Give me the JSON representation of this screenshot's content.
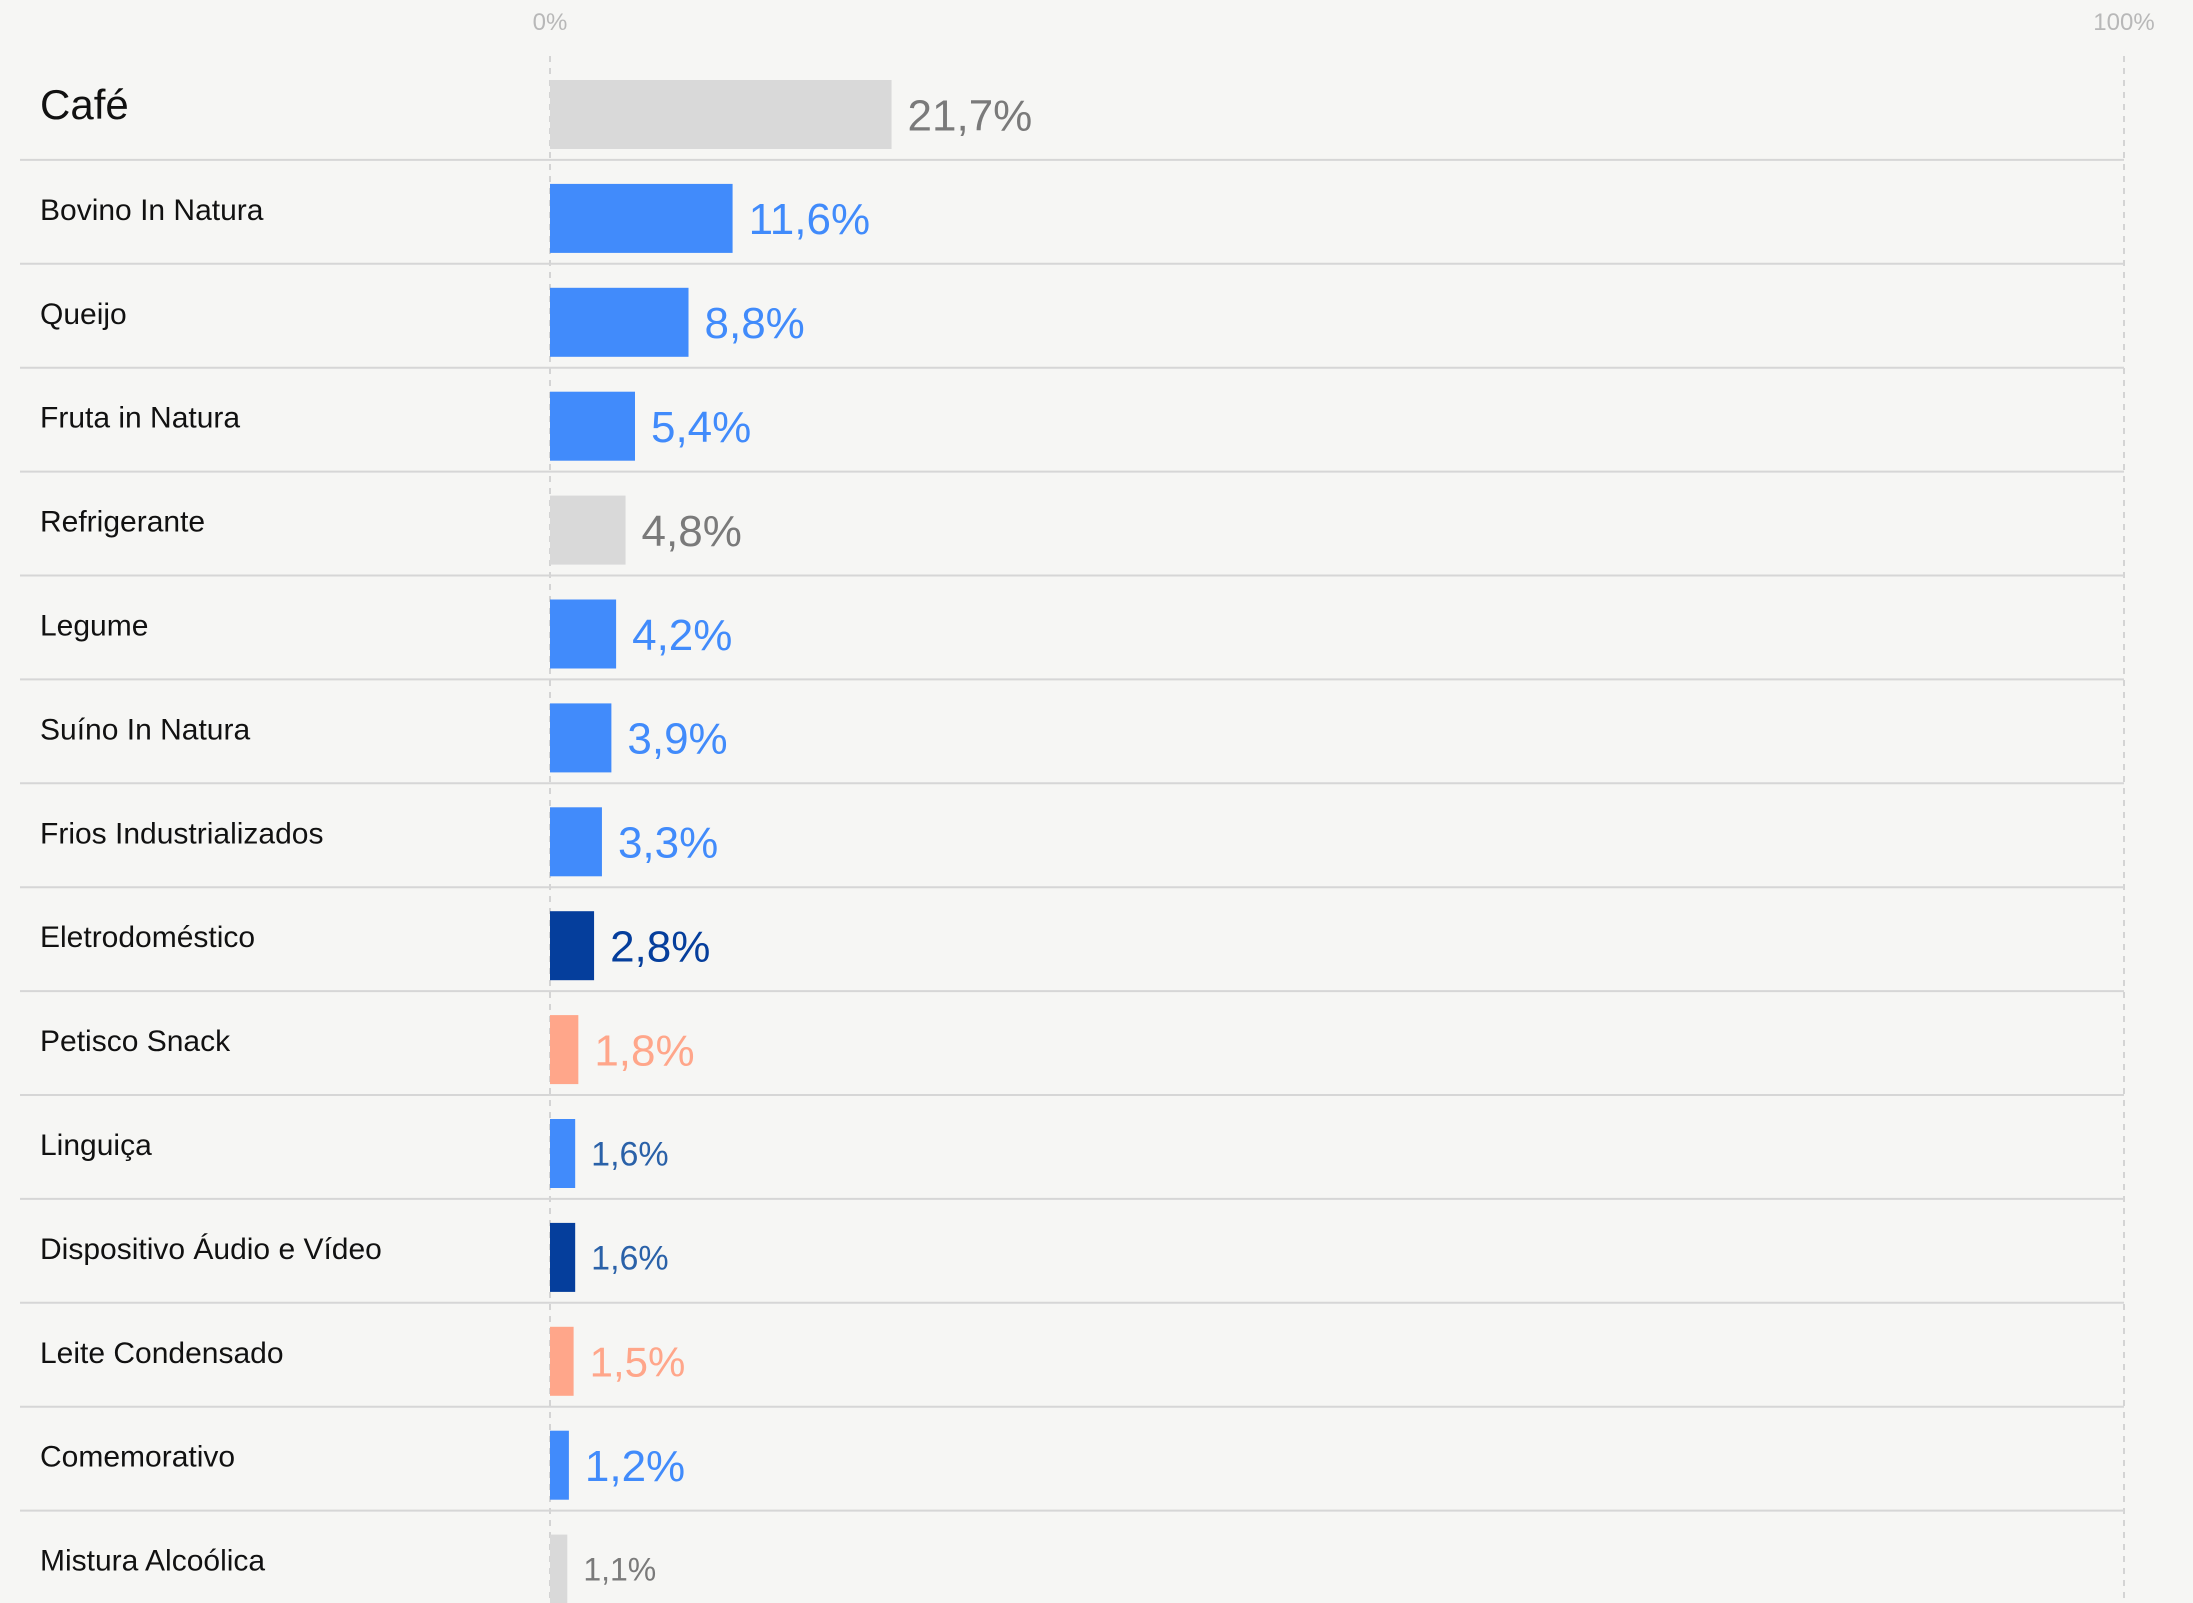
{
  "chart_data": {
    "type": "bar",
    "orientation": "horizontal",
    "axis": {
      "min_label": "0%",
      "max_label": "100%",
      "xlim": [
        0,
        100
      ]
    },
    "grid": false,
    "legend": "none",
    "colors": {
      "gray_bar": "#d9d9d9",
      "gray_text": "#7a7a7a",
      "blue": "#418bfb",
      "blue_text_dark": "#2a61a8",
      "navy": "#053e9c",
      "salmon": "#ffa68a"
    },
    "rows": [
      {
        "label": "Café",
        "value": 21.7,
        "value_label": "21,7%",
        "bar_color": "#d9d9d9",
        "text_color": "#7a7a7a"
      },
      {
        "label": "Bovino In Natura",
        "value": 11.6,
        "value_label": "11,6%",
        "bar_color": "#418bfb",
        "text_color": "#418bfb"
      },
      {
        "label": "Queijo",
        "value": 8.8,
        "value_label": "8,8%",
        "bar_color": "#418bfb",
        "text_color": "#418bfb"
      },
      {
        "label": "Fruta in Natura",
        "value": 5.4,
        "value_label": "5,4%",
        "bar_color": "#418bfb",
        "text_color": "#418bfb"
      },
      {
        "label": "Refrigerante",
        "value": 4.8,
        "value_label": "4,8%",
        "bar_color": "#d9d9d9",
        "text_color": "#7a7a7a"
      },
      {
        "label": "Legume",
        "value": 4.2,
        "value_label": "4,2%",
        "bar_color": "#418bfb",
        "text_color": "#418bfb"
      },
      {
        "label": "Suíno In Natura",
        "value": 3.9,
        "value_label": "3,9%",
        "bar_color": "#418bfb",
        "text_color": "#418bfb"
      },
      {
        "label": "Frios Industrializados",
        "value": 3.3,
        "value_label": "3,3%",
        "bar_color": "#418bfb",
        "text_color": "#418bfb"
      },
      {
        "label": "Eletrodoméstico",
        "value": 2.8,
        "value_label": "2,8%",
        "bar_color": "#053e9c",
        "text_color": "#053e9c"
      },
      {
        "label": "Petisco Snack",
        "value": 1.8,
        "value_label": "1,8%",
        "bar_color": "#ffa68a",
        "text_color": "#ffa68a"
      },
      {
        "label": "Linguiça",
        "value": 1.6,
        "value_label": "1,6%",
        "bar_color": "#418bfb",
        "text_color": "#2a61a8"
      },
      {
        "label": "Dispositivo Áudio e Vídeo",
        "value": 1.6,
        "value_label": "1,6%",
        "bar_color": "#053e9c",
        "text_color": "#2a61a8"
      },
      {
        "label": "Leite Condensado",
        "value": 1.5,
        "value_label": "1,5%",
        "bar_color": "#ffa68a",
        "text_color": "#ffa68a"
      },
      {
        "label": "Comemorativo",
        "value": 1.2,
        "value_label": "1,2%",
        "bar_color": "#418bfb",
        "text_color": "#418bfb"
      },
      {
        "label": "Mistura Alcoólica",
        "value": 1.1,
        "value_label": "1,1%",
        "bar_color": "#d9d9d9",
        "text_color": "#7a7a7a"
      }
    ]
  }
}
